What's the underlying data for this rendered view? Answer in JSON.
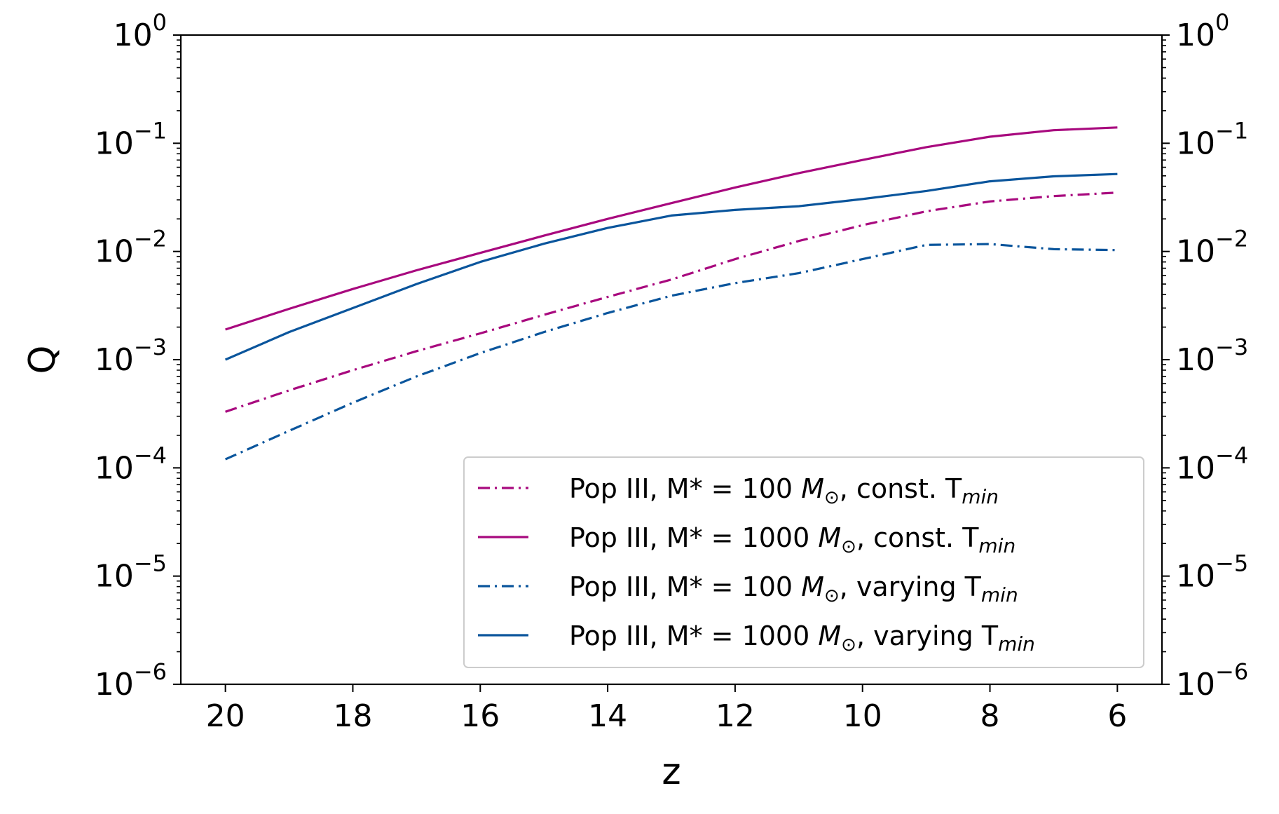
{
  "chart_data": {
    "type": "line",
    "xlabel": "z",
    "ylabel": "Q",
    "x_inverted": true,
    "xlim": [
      20.7,
      5.3
    ],
    "ylim": [
      1e-06,
      1
    ],
    "yscale": "log",
    "mirror_y_axis_right": true,
    "grid": false,
    "legend_position": "lower-right",
    "x_ticks": [
      "20",
      "18",
      "16",
      "14",
      "12",
      "10",
      "8",
      "6"
    ],
    "x_tick_values": [
      20,
      18,
      16,
      14,
      12,
      10,
      8,
      6
    ],
    "y_ticks": [
      {
        "base": "10",
        "exp": "−6",
        "value": 1e-06
      },
      {
        "base": "10",
        "exp": "−5",
        "value": 1e-05
      },
      {
        "base": "10",
        "exp": "−4",
        "value": 0.0001
      },
      {
        "base": "10",
        "exp": "−3",
        "value": 0.001
      },
      {
        "base": "10",
        "exp": "−2",
        "value": 0.01
      },
      {
        "base": "10",
        "exp": "−1",
        "value": 0.1
      },
      {
        "base": "10",
        "exp": "0",
        "value": 1
      }
    ],
    "series": [
      {
        "name": "Pop III, M* = 100 M☉, const. Tmin",
        "label_parts": [
          "Pop III, M* = 100 ",
          "M",
          "⊙",
          ", const. T",
          "min"
        ],
        "color": "#a8097e",
        "dash": "dashdot",
        "x": [
          20,
          19,
          18,
          17,
          16,
          15,
          14,
          13,
          12,
          11,
          10,
          9,
          8,
          7,
          6
        ],
        "y": [
          0.00033,
          0.00052,
          0.0008,
          0.0012,
          0.00175,
          0.0026,
          0.0038,
          0.0055,
          0.0085,
          0.0125,
          0.0175,
          0.0235,
          0.029,
          0.0325,
          0.035
        ]
      },
      {
        "name": "Pop III, M* = 1000 M☉, const. Tmin",
        "label_parts": [
          "Pop III, M* = 1000 ",
          "M",
          "⊙",
          ", const. T",
          "min"
        ],
        "color": "#a8097e",
        "dash": "solid",
        "x": [
          20,
          19,
          18,
          17,
          16,
          15,
          14,
          13,
          12,
          11,
          10,
          9,
          8,
          7,
          6
        ],
        "y": [
          0.0019,
          0.00295,
          0.0045,
          0.0067,
          0.0097,
          0.014,
          0.02,
          0.028,
          0.039,
          0.053,
          0.07,
          0.092,
          0.115,
          0.132,
          0.14
        ]
      },
      {
        "name": "Pop III, M* = 100 M☉, varying Tmin",
        "label_parts": [
          "Pop III, M* = 100 ",
          "M",
          "⊙",
          ", varying T",
          "min"
        ],
        "color": "#0a559c",
        "dash": "dashdot",
        "x": [
          20,
          19,
          18,
          17,
          16,
          15,
          14,
          13,
          12,
          11,
          10,
          9,
          8,
          7,
          6
        ],
        "y": [
          0.00012,
          0.00022,
          0.0004,
          0.0007,
          0.00115,
          0.0018,
          0.0027,
          0.0039,
          0.0051,
          0.0063,
          0.0085,
          0.0115,
          0.0117,
          0.0105,
          0.0103
        ]
      },
      {
        "name": "Pop III, M* = 1000 M☉, varying Tmin",
        "label_parts": [
          "Pop III, M* = 1000 ",
          "M",
          "⊙",
          ", varying T",
          "min"
        ],
        "color": "#0a559c",
        "dash": "solid",
        "x": [
          20,
          19,
          18,
          17,
          16,
          15,
          14,
          13,
          12,
          11,
          10,
          9,
          8,
          7,
          6
        ],
        "y": [
          0.001,
          0.0018,
          0.003,
          0.005,
          0.008,
          0.0118,
          0.0165,
          0.0215,
          0.0242,
          0.0262,
          0.0305,
          0.0362,
          0.0445,
          0.0495,
          0.052
        ]
      }
    ]
  }
}
